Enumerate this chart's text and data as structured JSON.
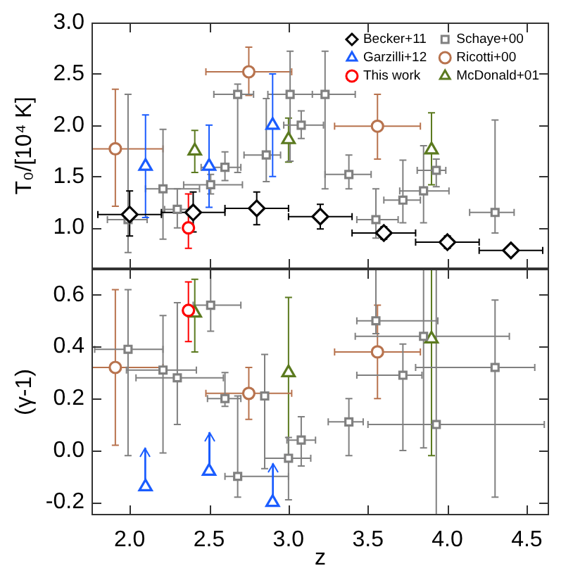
{
  "chart_data": [
    {
      "type": "scatter",
      "ylabel": "T₀/[10⁴ K]",
      "xlim": [
        1.76,
        4.64
      ],
      "xticks": [
        {
          "value": 2,
          "label": null
        },
        {
          "value": 2.5,
          "label": null
        },
        {
          "value": 3,
          "label": null
        },
        {
          "value": 3.5,
          "label": null
        },
        {
          "value": 4,
          "label": null
        },
        {
          "value": 4.5,
          "label": null
        }
      ],
      "ylim": [
        0.6,
        3.0
      ],
      "yticks": [
        {
          "value": 1,
          "label": "1.0"
        },
        {
          "value": 1.5,
          "label": "1.5"
        },
        {
          "value": 2,
          "label": "2.0"
        },
        {
          "value": 2.5,
          "label": "2.5"
        },
        {
          "value": 3,
          "label": "3.0"
        }
      ],
      "tick_labels": "y",
      "legend": "top right",
      "series": [
        {
          "name": "Becker+11",
          "color": "#000000",
          "marker": "diamond",
          "x": [
            2.0,
            2.4,
            2.8,
            3.2,
            3.6,
            4.0,
            4.4
          ],
          "values": [
            1.13,
            1.15,
            1.19,
            1.11,
            0.95,
            0.86,
            0.78
          ],
          "errors": [
            [
              0.92,
              1.36
            ],
            [
              0.96,
              1.35
            ],
            [
              1.03,
              1.35
            ],
            [
              0.99,
              1.23
            ],
            [
              0.89,
              1.01
            ],
            [
              0.8,
              0.92
            ],
            null
          ],
          "xerrors": [
            0.2,
            0.2,
            0.2,
            0.2,
            0.2,
            0.2,
            0.2
          ]
        },
        {
          "name": "Garzilli+12",
          "color": "#1a5cff",
          "marker": "triangle",
          "x": [
            2.1,
            2.5,
            2.9
          ],
          "values": [
            1.6,
            1.6,
            2.0
          ],
          "errors": [
            [
              1.1,
              2.1
            ],
            [
              1.2,
              2.0
            ],
            [
              1.5,
              2.5
            ]
          ]
        },
        {
          "name": "This work",
          "color": "#ff0000",
          "marker": "circle",
          "x": [
            2.37
          ],
          "values": [
            1.0
          ],
          "errors": [
            [
              0.8,
              1.33
            ]
          ]
        },
        {
          "name": "Schaye+00",
          "color": "#808080",
          "marker": "square",
          "x": [
            1.99,
            2.21,
            2.3,
            2.51,
            2.6,
            2.68,
            2.86,
            3.01,
            3.08,
            3.23,
            3.38,
            3.55,
            3.72,
            3.85,
            3.93,
            4.3
          ],
          "values": [
            1.08,
            1.38,
            1.18,
            1.42,
            1.59,
            2.3,
            1.71,
            2.3,
            2.0,
            2.3,
            1.52,
            1.08,
            1.27,
            1.36,
            1.56,
            1.15
          ],
          "errors": [
            [
              0.76,
              2.3
            ],
            [
              0.89,
              1.96
            ],
            [
              1.0,
              1.38
            ],
            [
              1.33,
              1.52
            ],
            [
              1.46,
              1.74
            ],
            [
              1.54,
              2.4
            ],
            [
              1.45,
              2.26
            ],
            [
              1.65,
              2.72
            ],
            [
              1.87,
              2.14
            ],
            [
              1.38,
              2.72
            ],
            [
              1.38,
              1.71
            ],
            [
              0.9,
              1.38
            ],
            [
              1.05,
              1.66
            ],
            [
              1.05,
              1.8
            ],
            [
              1.4,
              1.67
            ],
            [
              0.95,
              2.05
            ]
          ],
          "xerrors": [
            [
              1.86,
              2.11
            ],
            [
              2.1,
              2.44
            ],
            [
              2.22,
              2.38
            ],
            [
              2.34,
              2.71
            ],
            [
              2.45,
              2.7
            ],
            [
              2.53,
              2.78
            ],
            [
              2.72,
              2.95
            ],
            [
              2.87,
              3.15
            ],
            [
              2.97,
              3.22
            ],
            [
              3.01,
              3.42
            ],
            [
              3.23,
              3.52
            ],
            [
              3.43,
              3.69
            ],
            [
              3.6,
              3.83
            ],
            [
              3.7,
              4.01
            ],
            [
              3.81,
              3.99
            ],
            [
              4.14,
              4.42
            ]
          ]
        },
        {
          "name": "Ricotti+00",
          "color": "#b8734e",
          "marker": "circle",
          "x": [
            1.91,
            2.75,
            3.56
          ],
          "values": [
            1.77,
            2.52,
            1.99
          ],
          "errors": [
            [
              1.21,
              2.35
            ],
            [
              2.29,
              2.76
            ],
            [
              1.67,
              2.3
            ]
          ],
          "xerrors": [
            [
              1.76,
              2.21
            ],
            [
              2.48,
              3.02
            ],
            [
              3.29,
              3.83
            ]
          ]
        },
        {
          "name": "McDonald+01",
          "color": "#5b7a1f",
          "marker": "triangle",
          "x": [
            2.41,
            3.0,
            3.9
          ],
          "values": [
            1.75,
            1.86,
            1.76
          ],
          "errors": [
            [
              1.54,
              1.95
            ],
            [
              1.64,
              2.07
            ],
            [
              1.42,
              2.12
            ]
          ]
        }
      ]
    },
    {
      "type": "scatter",
      "xlabel": "z",
      "ylabel": "(γ-1)",
      "xlim": [
        1.76,
        4.64
      ],
      "xticks": [
        {
          "value": 2,
          "label": "2.0"
        },
        {
          "value": 2.5,
          "label": "2.5"
        },
        {
          "value": 3,
          "label": "3.0"
        },
        {
          "value": 3.5,
          "label": "3.5"
        },
        {
          "value": 4,
          "label": "4.0"
        },
        {
          "value": 4.5,
          "label": "4.5"
        }
      ],
      "ylim": [
        -0.25,
        0.7
      ],
      "yticks": [
        {
          "value": -0.2,
          "label": "-0.2"
        },
        {
          "value": 0,
          "label": "0.0"
        },
        {
          "value": 0.2,
          "label": "0.2"
        },
        {
          "value": 0.4,
          "label": "0.4"
        },
        {
          "value": 0.6,
          "label": "0.6"
        }
      ],
      "series": [
        {
          "color": "#1a5cff",
          "marker": "triangle",
          "x": [
            2.1,
            2.5,
            2.9
          ],
          "values": [
            -0.14,
            -0.08,
            -0.2
          ],
          "errors": [
            [
              -0.14,
              0.01
            ],
            [
              -0.08,
              0.07
            ],
            [
              -0.2,
              -0.05
            ]
          ]
        },
        {
          "color": "#ff0000",
          "marker": "circle",
          "x": [
            2.37
          ],
          "values": [
            0.54
          ],
          "errors": [
            [
              0.42,
              0.65
            ]
          ]
        },
        {
          "color": "#808080",
          "marker": "square",
          "x": [
            1.99,
            2.21,
            2.3,
            2.51,
            2.6,
            2.68,
            2.85,
            3.0,
            3.08,
            3.38,
            3.55,
            3.72,
            3.85,
            3.93,
            4.3
          ],
          "values": [
            0.39,
            0.31,
            0.28,
            0.56,
            0.2,
            -0.1,
            0.21,
            -0.03,
            0.04,
            0.11,
            0.5,
            0.29,
            0.44,
            0.1,
            0.32
          ],
          "errors": [
            [
              -0.02,
              0.62
            ],
            [
              -0.01,
              0.52
            ],
            [
              0.1,
              0.57
            ],
            [
              0.46,
              0.7
            ],
            [
              0.17,
              0.3
            ],
            [
              -0.18,
              0.21
            ],
            [
              -0.07,
              0.37
            ],
            [
              -0.19,
              0.05
            ],
            [
              -0.06,
              0.13
            ],
            [
              -0.02,
              0.2
            ],
            [
              0.45,
              0.7
            ],
            [
              0.0,
              0.41
            ],
            [
              0.01,
              0.7
            ],
            [
              -0.25,
              0.7
            ],
            [
              -0.18,
              0.58
            ]
          ],
          "xerrors": [
            [
              1.78,
              2.21
            ],
            [
              1.98,
              2.42
            ],
            [
              2.04,
              2.59
            ],
            [
              2.4,
              2.7
            ],
            [
              2.49,
              2.7
            ],
            [
              2.6,
              3.0
            ],
            null,
            [
              2.85,
              3.14
            ],
            [
              2.99,
              3.17
            ],
            [
              3.25,
              3.47
            ],
            [
              3.43,
              3.94
            ],
            [
              3.43,
              3.84
            ],
            [
              3.42,
              4.39
            ],
            [
              3.5,
              4.61
            ],
            [
              3.8,
              4.55
            ]
          ]
        },
        {
          "color": "#b8734e",
          "marker": "circle",
          "x": [
            1.91,
            2.75,
            3.56
          ],
          "values": [
            0.32,
            0.22,
            0.38
          ],
          "errors": [
            [
              0.02,
              0.62
            ],
            [
              0.12,
              0.32
            ],
            [
              0.2,
              0.56
            ]
          ],
          "xerrors": [
            [
              1.76,
              2.21
            ],
            [
              2.48,
              3.02
            ],
            [
              3.29,
              3.83
            ]
          ]
        },
        {
          "color": "#5b7a1f",
          "marker": "triangle",
          "x": [
            2.41,
            3.0,
            3.9
          ],
          "values": [
            0.53,
            0.3,
            0.43
          ],
          "errors": [
            [
              0.38,
              0.66
            ],
            [
              -0.02,
              0.59
            ],
            [
              -0.02,
              0.7
            ]
          ]
        }
      ]
    }
  ]
}
